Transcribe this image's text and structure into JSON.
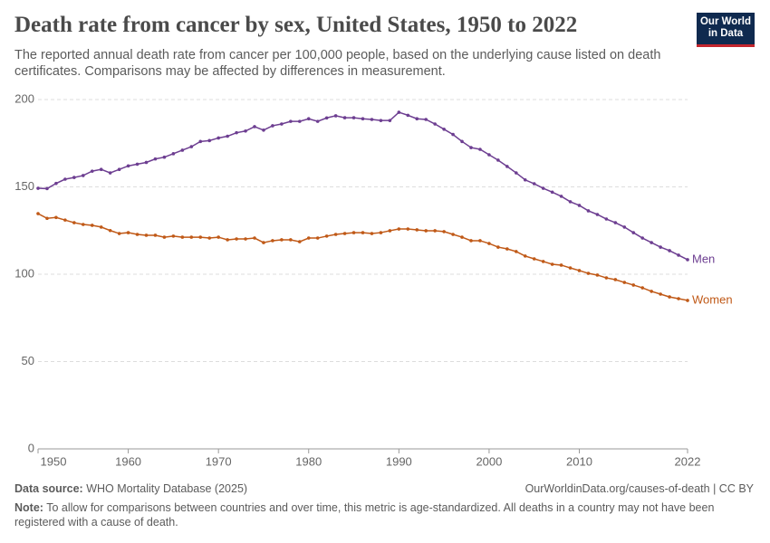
{
  "chart_data": {
    "type": "line",
    "title": "Death rate from cancer by sex, United States, 1950 to 2022",
    "subtitle": "The reported annual death rate from cancer per 100,000 people, based on the underlying cause listed on death certificates. Comparisons may be affected by differences in measurement.",
    "logo": [
      "Our World",
      "in Data"
    ],
    "source_label": "Data source:",
    "source": "WHO Mortality Database (2025)",
    "url": "OurWorldinData.org/causes-of-death | CC BY",
    "note_label": "Note:",
    "note": "To allow for comparisons between countries and over time, this metric is age-standardized. All deaths in a country may not have been registered with a cause of death.",
    "x": [
      1950,
      1951,
      1952,
      1953,
      1954,
      1955,
      1956,
      1957,
      1958,
      1959,
      1960,
      1961,
      1962,
      1963,
      1964,
      1965,
      1966,
      1967,
      1968,
      1969,
      1970,
      1971,
      1972,
      1973,
      1974,
      1975,
      1976,
      1977,
      1978,
      1979,
      1980,
      1981,
      1982,
      1983,
      1984,
      1985,
      1986,
      1987,
      1988,
      1989,
      1990,
      1991,
      1992,
      1993,
      1994,
      1995,
      1996,
      1997,
      1998,
      1999,
      2000,
      2001,
      2002,
      2003,
      2004,
      2005,
      2006,
      2007,
      2008,
      2009,
      2010,
      2011,
      2012,
      2013,
      2014,
      2015,
      2016,
      2017,
      2018,
      2019,
      2020,
      2021,
      2022
    ],
    "series": [
      {
        "name": "Men",
        "color": "#6d3e91",
        "values": [
          149.2,
          149,
          152,
          154.4,
          155.4,
          156.5,
          159,
          160,
          158,
          160,
          162,
          163,
          164,
          166,
          167,
          169,
          171,
          173,
          176,
          176.5,
          178,
          179,
          181,
          182,
          184.5,
          182.5,
          185,
          186,
          187.5,
          187.5,
          189,
          187.5,
          189.5,
          190.7,
          189.6,
          189.6,
          189,
          188.6,
          188,
          188,
          192.7,
          191,
          189,
          188.6,
          186,
          183,
          180,
          176,
          172.5,
          171.5,
          168.4,
          165.3,
          161.7,
          158,
          154,
          151.8,
          149.2,
          147,
          144.6,
          141.5,
          139.4,
          136.3,
          134.2,
          131.6,
          129.5,
          127,
          123.8,
          120.7,
          118.1,
          115.5,
          113.5,
          110.9,
          108.3
        ]
      },
      {
        "name": "Women",
        "color": "#c05917",
        "values": [
          134.7,
          132,
          132.5,
          131,
          129.5,
          128.5,
          128,
          127,
          125,
          123.3,
          123.8,
          122.8,
          122.3,
          122.3,
          121.2,
          121.8,
          121.2,
          121.2,
          121.2,
          120.7,
          121.2,
          119.7,
          120.2,
          120.2,
          120.7,
          118.1,
          119.2,
          119.7,
          119.7,
          118.6,
          120.7,
          120.7,
          121.8,
          122.8,
          123.3,
          123.8,
          123.8,
          123.3,
          123.8,
          124.9,
          125.9,
          125.9,
          125.4,
          124.9,
          124.9,
          124.4,
          122.8,
          121.2,
          119.2,
          119.2,
          117.6,
          115.5,
          114.5,
          113,
          110.4,
          108.8,
          107.3,
          105.7,
          105.2,
          103.6,
          102.1,
          100.5,
          99.5,
          97.9,
          96.9,
          95.3,
          93.8,
          92.2,
          90.2,
          88.6,
          87,
          86,
          85
        ]
      }
    ],
    "xlim": [
      1950,
      2022
    ],
    "xticks": [
      1950,
      1960,
      1970,
      1980,
      1990,
      2000,
      2010,
      2022
    ],
    "ylim": [
      0,
      200
    ],
    "yticks": [
      0,
      50,
      100,
      150,
      200
    ],
    "grid": true
  }
}
